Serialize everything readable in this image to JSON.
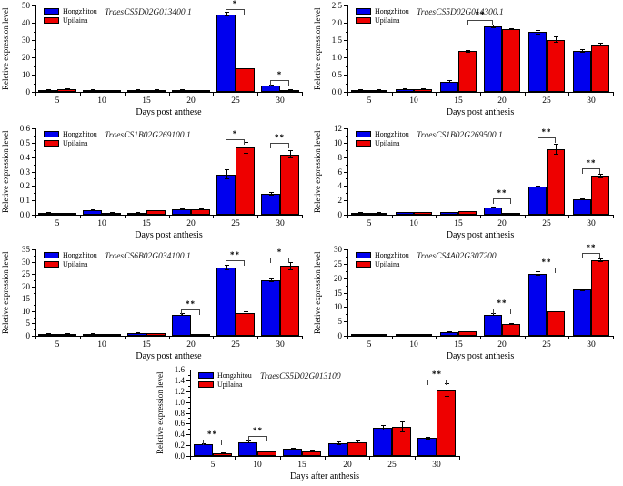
{
  "figure": {
    "background": "#ffffff",
    "axis_color": "#000000",
    "series_colors": {
      "hongzhitou": "#0000ee",
      "upilaina": "#ee0000"
    },
    "legend": {
      "items": [
        "Hongzhitou",
        "Upilaina"
      ]
    }
  },
  "chart_data": [
    {
      "type": "bar",
      "title": "TraesCS5D02G013400.1",
      "xlabel": "Days post anthese",
      "ylabel": "Reletive expression level",
      "categories": [
        "5",
        "10",
        "15",
        "20",
        "25",
        "30"
      ],
      "ylim": [
        0,
        50
      ],
      "ytick_vals": [
        0,
        10,
        20,
        30,
        40,
        50
      ],
      "ytick_labels": [
        "0",
        "10",
        "20",
        "30",
        "40",
        "50"
      ],
      "legend_position": "top-left",
      "grid": false,
      "series": [
        {
          "name": "Hongzhitou",
          "color": "#0000ee",
          "values": [
            1.2,
            1.2,
            1.3,
            1.2,
            45.0,
            3.8
          ],
          "errors": [
            0.6,
            0.3,
            0.4,
            0.5,
            1.5,
            0.5
          ]
        },
        {
          "name": "Upilaina",
          "color": "#ee0000",
          "values": [
            1.8,
            1.0,
            1.3,
            1.0,
            13.5,
            1.0
          ],
          "errors": [
            0.3,
            0.3,
            0.4,
            0.3,
            0.4,
            0.4
          ]
        }
      ],
      "significance": [
        {
          "from_bar": 8,
          "to_bar": 9,
          "y": 48.0,
          "label": "*"
        },
        {
          "from_bar": 10,
          "to_bar": 11,
          "y": 7.0,
          "label": "*"
        }
      ]
    },
    {
      "type": "bar",
      "title": "TraesCS5D02G014300.1",
      "xlabel": "Days post anthesis",
      "ylabel": "Reletive expression level",
      "categories": [
        "5",
        "10",
        "15",
        "20",
        "25",
        "30"
      ],
      "ylim": [
        0,
        2.5
      ],
      "ytick_vals": [
        0,
        0.5,
        1.0,
        1.5,
        2.0,
        2.5
      ],
      "ytick_labels": [
        "0.0",
        "0.5",
        "1.0",
        "1.5",
        "2.0",
        "2.5"
      ],
      "legend_position": "top-left",
      "grid": false,
      "series": [
        {
          "name": "Hongzhitou",
          "color": "#0000ee",
          "values": [
            0.05,
            0.08,
            0.3,
            1.9,
            1.73,
            1.18
          ],
          "errors": [
            0.01,
            0.01,
            0.03,
            0.05,
            0.06,
            0.05
          ]
        },
        {
          "name": "Upilaina",
          "color": "#ee0000",
          "values": [
            0.05,
            0.08,
            1.18,
            1.82,
            1.51,
            1.37
          ],
          "errors": [
            0.01,
            0.01,
            0.04,
            0.03,
            0.1,
            0.04
          ]
        }
      ],
      "significance": [
        {
          "from_bar": 5,
          "to_bar": 6,
          "y": 2.08,
          "label": "**"
        }
      ]
    },
    {
      "type": "bar",
      "title": "TraesCS1B02G269100.1",
      "xlabel": "Days post anthesis",
      "ylabel": "Reletive expression level",
      "categories": [
        "5",
        "10",
        "15",
        "20",
        "25",
        "30"
      ],
      "ylim": [
        0,
        0.6
      ],
      "ytick_vals": [
        0,
        0.1,
        0.2,
        0.3,
        0.4,
        0.5,
        0.6
      ],
      "ytick_labels": [
        "0.0",
        "0.1",
        "0.2",
        "0.3",
        "0.4",
        "0.5",
        "0.6"
      ],
      "legend_position": "top-left",
      "grid": false,
      "series": [
        {
          "name": "Hongzhitou",
          "color": "#0000ee",
          "values": [
            0.012,
            0.032,
            0.012,
            0.04,
            0.28,
            0.145
          ],
          "errors": [
            0.004,
            0.004,
            0.005,
            0.005,
            0.035,
            0.012
          ]
        },
        {
          "name": "Upilaina",
          "color": "#ee0000",
          "values": [
            0.01,
            0.015,
            0.03,
            0.04,
            0.465,
            0.42
          ],
          "errors": [
            0.005,
            0.004,
            0.004,
            0.005,
            0.04,
            0.03
          ]
        }
      ],
      "significance": [
        {
          "from_bar": 8,
          "to_bar": 9,
          "y": 0.525,
          "label": "*"
        },
        {
          "from_bar": 10,
          "to_bar": 11,
          "y": 0.5,
          "label": "**"
        }
      ]
    },
    {
      "type": "bar",
      "title": "TraesCS1B02G269500.1",
      "xlabel": "Days post anthesis",
      "ylabel": "Reletive expression level",
      "categories": [
        "5",
        "10",
        "15",
        "20",
        "25",
        "30"
      ],
      "ylim": [
        0,
        12
      ],
      "ytick_vals": [
        0,
        2,
        4,
        6,
        8,
        10,
        12
      ],
      "ytick_labels": [
        "0",
        "2",
        "4",
        "6",
        "8",
        "10",
        "12"
      ],
      "legend_position": "top-left",
      "grid": false,
      "series": [
        {
          "name": "Hongzhitou",
          "color": "#0000ee",
          "values": [
            0.25,
            0.35,
            0.35,
            1.0,
            3.9,
            2.15
          ],
          "errors": [
            0.04,
            0.05,
            0.06,
            0.08,
            0.15,
            0.1
          ]
        },
        {
          "name": "Upilaina",
          "color": "#ee0000",
          "values": [
            0.25,
            0.35,
            0.5,
            0.15,
            9.1,
            5.4
          ],
          "errors": [
            0.04,
            0.05,
            0.06,
            0.04,
            0.8,
            0.3
          ]
        }
      ],
      "significance": [
        {
          "from_bar": 6,
          "to_bar": 7,
          "y": 2.3,
          "label": "**"
        },
        {
          "from_bar": 8,
          "to_bar": 9,
          "y": 10.7,
          "label": "**"
        },
        {
          "from_bar": 10,
          "to_bar": 11,
          "y": 6.4,
          "label": "**"
        }
      ]
    },
    {
      "type": "bar",
      "title": "TraesCS6B02G034100.1",
      "xlabel": "Days post anthese",
      "ylabel": "Reletive expression level",
      "categories": [
        "5",
        "10",
        "15",
        "20",
        "25",
        "30"
      ],
      "ylim": [
        0,
        35
      ],
      "ytick_vals": [
        0,
        5,
        10,
        15,
        20,
        25,
        30,
        35
      ],
      "ytick_labels": [
        "0",
        "5",
        "10",
        "15",
        "20",
        "25",
        "30",
        "35"
      ],
      "legend_position": "top-left",
      "grid": false,
      "series": [
        {
          "name": "Hongzhitou",
          "color": "#0000ee",
          "values": [
            0.7,
            0.9,
            1.2,
            8.6,
            27.7,
            22.5
          ],
          "errors": [
            0.1,
            0.15,
            0.25,
            0.45,
            1.0,
            0.8
          ]
        },
        {
          "name": "Upilaina",
          "color": "#ee0000",
          "values": [
            0.7,
            0.5,
            1.0,
            0.3,
            9.3,
            28.2
          ],
          "errors": [
            0.1,
            0.1,
            0.2,
            0.1,
            0.6,
            1.5
          ]
        }
      ],
      "significance": [
        {
          "from_bar": 6,
          "to_bar": 7,
          "y": 10.8,
          "label": "**"
        },
        {
          "from_bar": 8,
          "to_bar": 9,
          "y": 30.6,
          "label": "**"
        },
        {
          "from_bar": 10,
          "to_bar": 11,
          "y": 31.6,
          "label": "*"
        }
      ]
    },
    {
      "type": "bar",
      "title": "TraesCS4A02G307200",
      "xlabel": "Days post anthesis",
      "ylabel": "Reletive expression level",
      "categories": [
        "5",
        "10",
        "15",
        "20",
        "25",
        "30"
      ],
      "ylim": [
        0,
        30
      ],
      "ytick_vals": [
        0,
        5,
        10,
        15,
        20,
        25,
        30
      ],
      "ytick_labels": [
        "0",
        "5",
        "10",
        "15",
        "20",
        "25",
        "30"
      ],
      "legend_position": "top-left",
      "grid": false,
      "series": [
        {
          "name": "Hongzhitou",
          "color": "#0000ee",
          "values": [
            0.2,
            0.5,
            1.3,
            7.4,
            21.5,
            16.0
          ],
          "errors": [
            0.05,
            0.08,
            0.15,
            0.5,
            0.8,
            0.4
          ]
        },
        {
          "name": "Upilaina",
          "color": "#ee0000",
          "values": [
            0.2,
            0.5,
            1.5,
            4.2,
            8.4,
            26.2
          ],
          "errors": [
            0.05,
            0.08,
            0.15,
            0.3,
            0.25,
            0.5
          ]
        }
      ],
      "significance": [
        {
          "from_bar": 6,
          "to_bar": 7,
          "y": 9.4,
          "label": "**"
        },
        {
          "from_bar": 8,
          "to_bar": 9,
          "y": 23.6,
          "label": "**"
        },
        {
          "from_bar": 10,
          "to_bar": 11,
          "y": 28.6,
          "label": "**"
        }
      ]
    },
    {
      "type": "bar",
      "title": "TraesCS5D02G013100",
      "xlabel": "Days after anthesis",
      "ylabel": "Reletive expression level",
      "categories": [
        "5",
        "10",
        "15",
        "20",
        "25",
        "30"
      ],
      "ylim": [
        0,
        1.6
      ],
      "ytick_vals": [
        0,
        0.2,
        0.4,
        0.6,
        0.8,
        1.0,
        1.2,
        1.4,
        1.6
      ],
      "ytick_labels": [
        "0.0",
        "0.2",
        "0.4",
        "0.6",
        "0.8",
        "1.0",
        "1.2",
        "1.4",
        "1.6"
      ],
      "legend_position": "top-left",
      "grid": false,
      "series": [
        {
          "name": "Hongzhitou",
          "color": "#0000ee",
          "values": [
            0.22,
            0.26,
            0.14,
            0.24,
            0.53,
            0.33
          ],
          "errors": [
            0.02,
            0.02,
            0.02,
            0.03,
            0.05,
            0.02
          ]
        },
        {
          "name": "Upilaina",
          "color": "#ee0000",
          "values": [
            0.05,
            0.09,
            0.09,
            0.26,
            0.54,
            1.22
          ],
          "errors": [
            0.01,
            0.015,
            0.03,
            0.02,
            0.1,
            0.12
          ]
        }
      ],
      "significance": [
        {
          "from_bar": 0,
          "to_bar": 1,
          "y": 0.3,
          "label": "**"
        },
        {
          "from_bar": 2,
          "to_bar": 3,
          "y": 0.37,
          "label": "**"
        },
        {
          "from_bar": 10,
          "to_bar": 11,
          "y": 1.42,
          "label": "**"
        }
      ]
    }
  ]
}
